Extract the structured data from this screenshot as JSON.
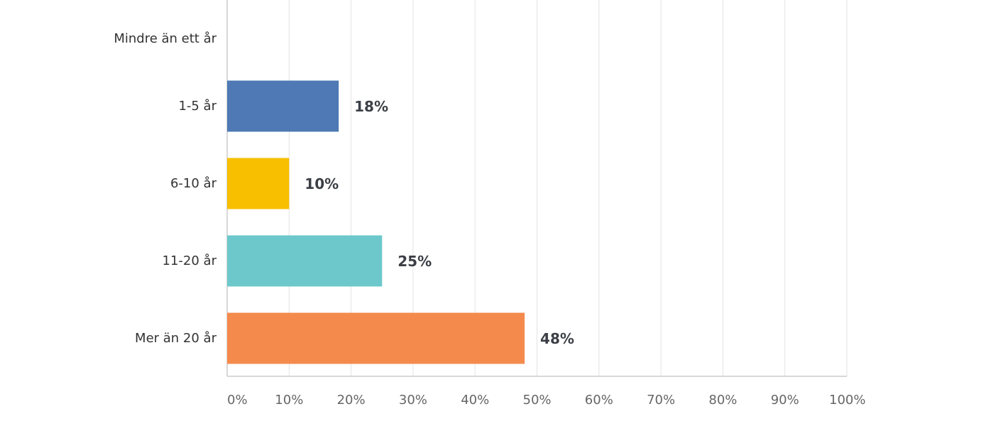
{
  "chart_data": {
    "type": "bar",
    "orientation": "horizontal",
    "categories": [
      "Mindre än ett år",
      "1-5 år",
      "6-10 år",
      "11-20 år",
      "Mer än 20 år"
    ],
    "values": [
      0,
      18,
      10,
      25,
      48
    ],
    "value_labels": [
      null,
      "18%",
      "10%",
      "25%",
      "48%"
    ],
    "colors": [
      "#4e79b4",
      "#4e79b4",
      "#f7bf00",
      "#6cc8cb",
      "#f58a4d"
    ],
    "xlim": [
      0,
      100
    ],
    "xticks": [
      {
        "value": 0,
        "label": "0%"
      },
      {
        "value": 10,
        "label": "10%"
      },
      {
        "value": 20,
        "label": "20%"
      },
      {
        "value": 30,
        "label": "30%"
      },
      {
        "value": 40,
        "label": "40%"
      },
      {
        "value": 50,
        "label": "50%"
      },
      {
        "value": 60,
        "label": "60%"
      },
      {
        "value": 70,
        "label": "70%"
      },
      {
        "value": 80,
        "label": "80%"
      },
      {
        "value": 90,
        "label": "90%"
      },
      {
        "value": 100,
        "label": "100%"
      }
    ],
    "grid": true
  }
}
